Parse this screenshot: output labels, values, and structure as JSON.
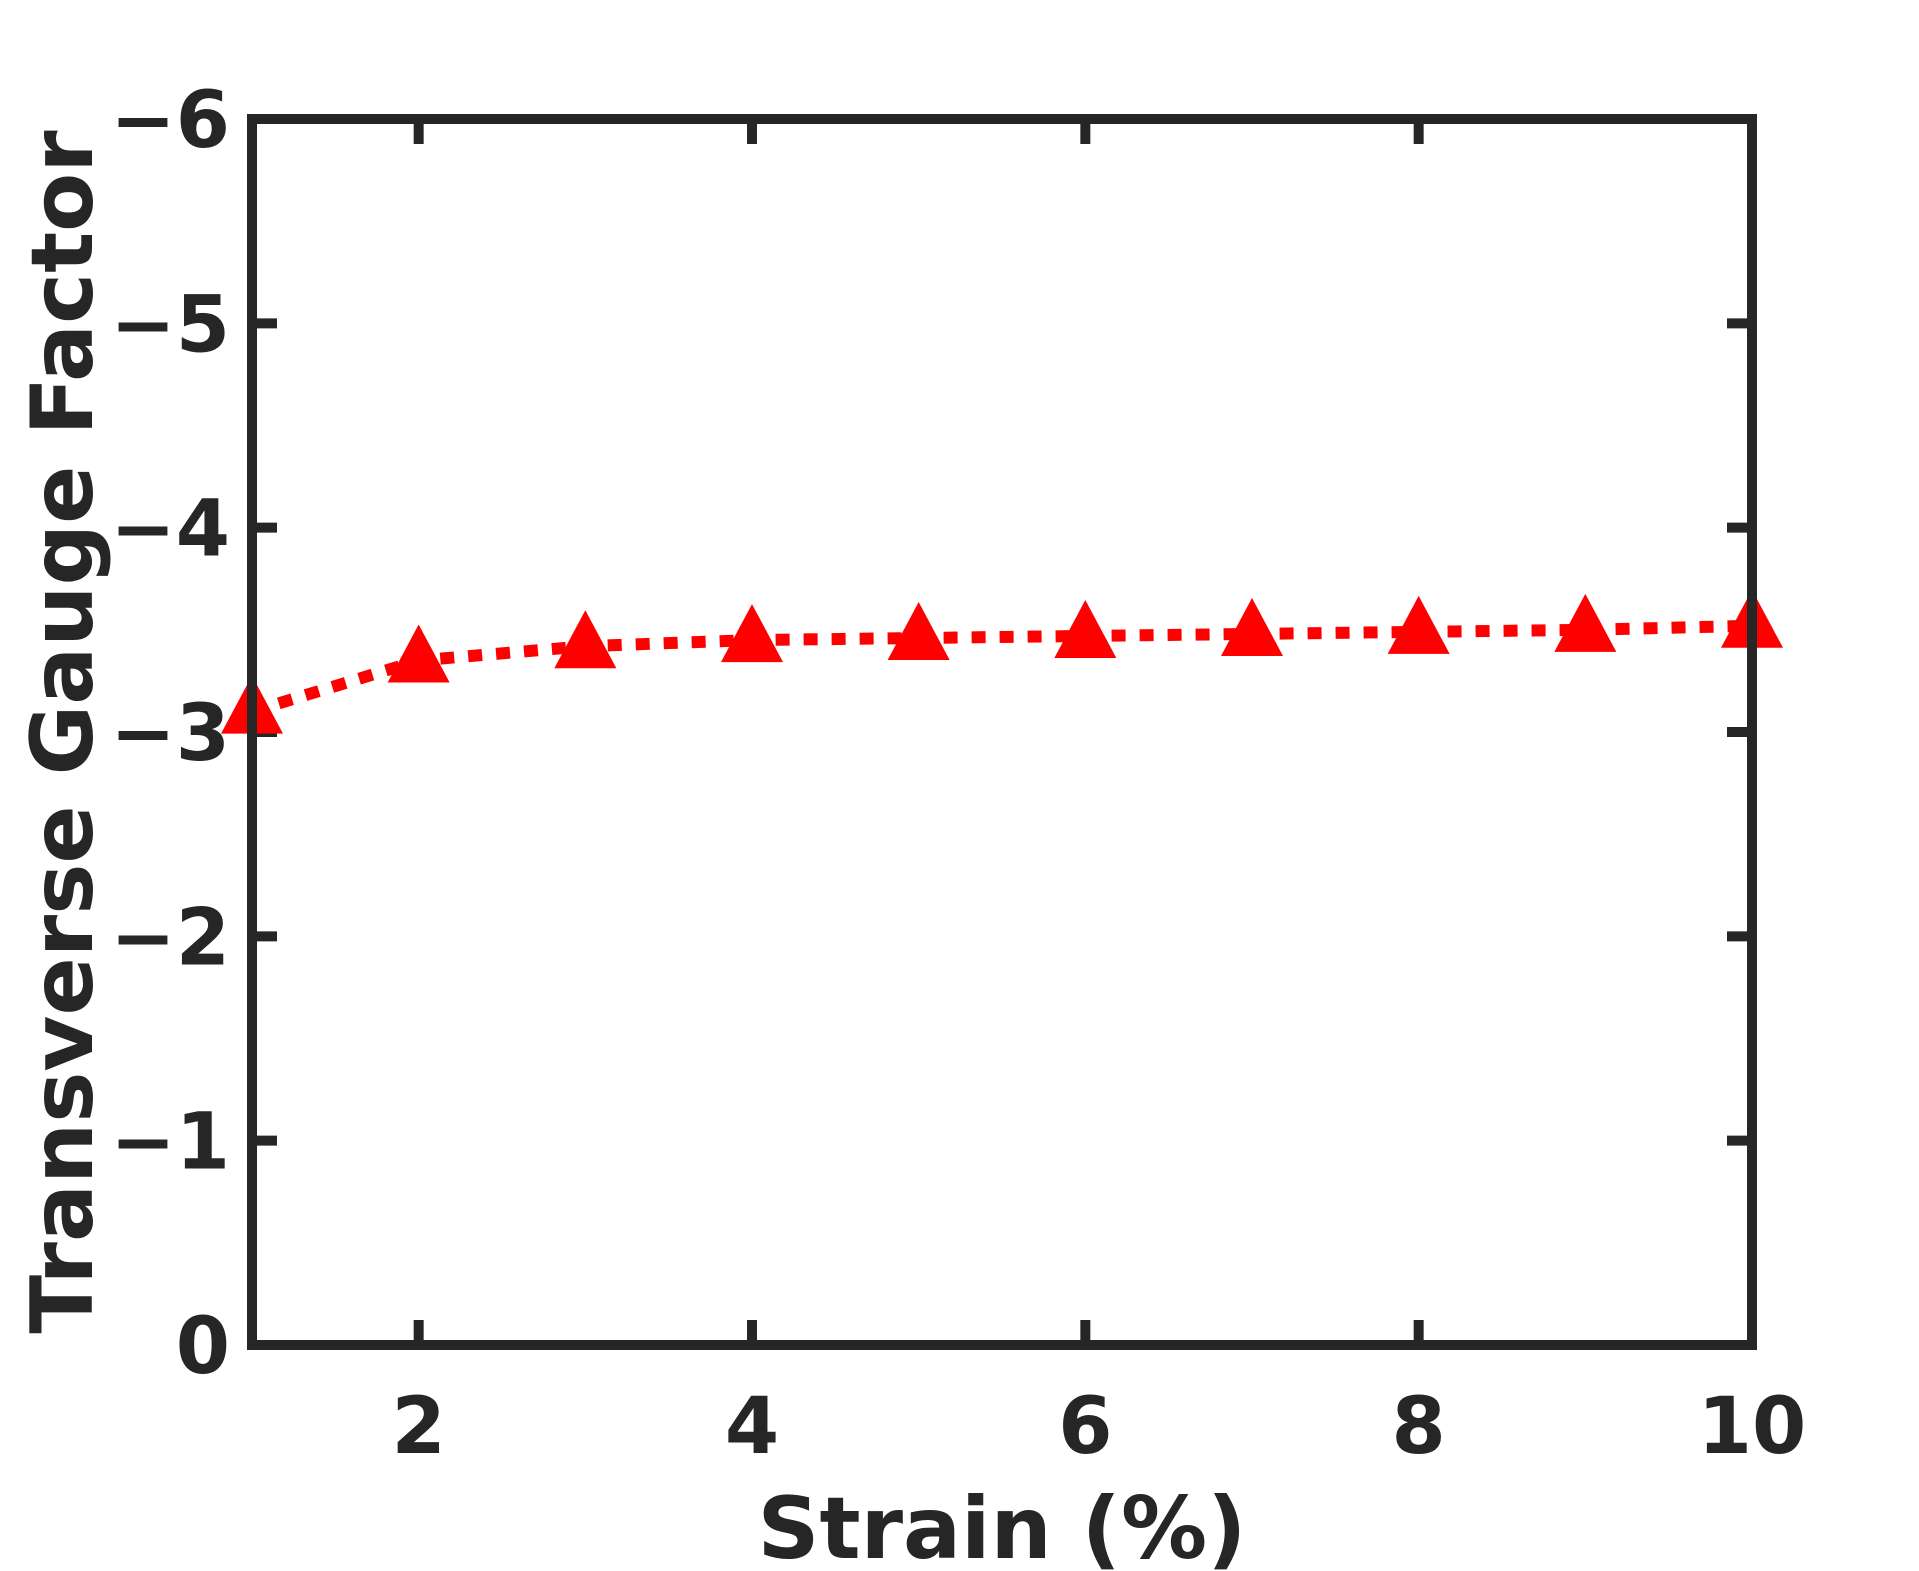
{
  "chart_data": {
    "type": "line",
    "xlabel": "Strain (%)",
    "ylabel": "Transverse Gauge Factor",
    "xlim": [
      1,
      10
    ],
    "ylim": [
      0,
      -6
    ],
    "y_axis_reversed": true,
    "grid": false,
    "box": true,
    "xticks": [
      2,
      4,
      6,
      8,
      10
    ],
    "xtick_labels": [
      "2",
      "4",
      "6",
      "8",
      "10"
    ],
    "yticks": [
      0,
      -1,
      -2,
      -3,
      -4,
      -5,
      -6
    ],
    "ytick_labels": [
      "0",
      "−1",
      "−2",
      "−3",
      "−4",
      "−5",
      "−6"
    ],
    "series": [
      {
        "color": "#ff0000",
        "line_style": "dotted",
        "marker": "triangle-up",
        "x": [
          1,
          2,
          3,
          4,
          5,
          6,
          7,
          8,
          9,
          10
        ],
        "y": [
          -3.1,
          -3.35,
          -3.42,
          -3.45,
          -3.46,
          -3.47,
          -3.48,
          -3.49,
          -3.5,
          -3.52
        ]
      }
    ]
  }
}
